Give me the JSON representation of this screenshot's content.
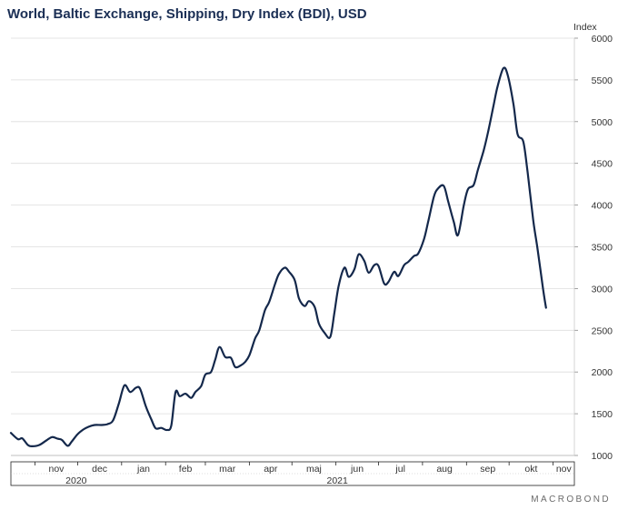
{
  "header": {
    "title": "World, Baltic Exchange, Shipping, Dry Index (BDI), USD"
  },
  "brand": {
    "label": "MACROBOND"
  },
  "chart_data": {
    "type": "line",
    "title": "World, Baltic Exchange, Shipping, Dry Index (BDI), USD",
    "ylabel": "Index",
    "ylim": [
      1000,
      6000
    ],
    "yticks": [
      1000,
      1500,
      2000,
      2500,
      3000,
      3500,
      4000,
      4500,
      5000,
      5500,
      6000
    ],
    "y_axis_position": "right",
    "grid": true,
    "line_color": "#14284b",
    "xlim": [
      "2020-10-15",
      "2021-11-16"
    ],
    "x_month_labels": [
      {
        "label": "nov",
        "date": "2020-11-01"
      },
      {
        "label": "dec",
        "date": "2020-12-01"
      },
      {
        "label": "jan",
        "date": "2021-01-01"
      },
      {
        "label": "feb",
        "date": "2021-02-01"
      },
      {
        "label": "mar",
        "date": "2021-03-01"
      },
      {
        "label": "apr",
        "date": "2021-04-01"
      },
      {
        "label": "maj",
        "date": "2021-05-01"
      },
      {
        "label": "jun",
        "date": "2021-06-01"
      },
      {
        "label": "jul",
        "date": "2021-07-01"
      },
      {
        "label": "aug",
        "date": "2021-08-01"
      },
      {
        "label": "sep",
        "date": "2021-09-01"
      },
      {
        "label": "okt",
        "date": "2021-10-01"
      },
      {
        "label": "nov",
        "date": "2021-11-01"
      }
    ],
    "x_year_labels": [
      {
        "label": "2020",
        "date": "2020-11-30"
      },
      {
        "label": "2021",
        "date": "2021-06-02"
      }
    ],
    "series": [
      {
        "points": [
          [
            "2020-10-15",
            1270
          ],
          [
            "2020-10-20",
            1195
          ],
          [
            "2020-10-23",
            1205
          ],
          [
            "2020-10-27",
            1125
          ],
          [
            "2020-10-30",
            1110
          ],
          [
            "2020-11-04",
            1125
          ],
          [
            "2020-11-09",
            1180
          ],
          [
            "2020-11-13",
            1220
          ],
          [
            "2020-11-17",
            1200
          ],
          [
            "2020-11-20",
            1185
          ],
          [
            "2020-11-24",
            1115
          ],
          [
            "2020-11-27",
            1170
          ],
          [
            "2020-12-01",
            1255
          ],
          [
            "2020-12-05",
            1310
          ],
          [
            "2020-12-09",
            1345
          ],
          [
            "2020-12-13",
            1365
          ],
          [
            "2020-12-18",
            1365
          ],
          [
            "2020-12-22",
            1375
          ],
          [
            "2020-12-26",
            1420
          ],
          [
            "2020-12-30",
            1620
          ],
          [
            "2021-01-03",
            1840
          ],
          [
            "2021-01-07",
            1760
          ],
          [
            "2021-01-11",
            1810
          ],
          [
            "2021-01-14",
            1800
          ],
          [
            "2021-01-18",
            1590
          ],
          [
            "2021-01-22",
            1430
          ],
          [
            "2021-01-25",
            1325
          ],
          [
            "2021-01-29",
            1330
          ],
          [
            "2021-02-02",
            1305
          ],
          [
            "2021-02-05",
            1360
          ],
          [
            "2021-02-08",
            1760
          ],
          [
            "2021-02-11",
            1710
          ],
          [
            "2021-02-15",
            1740
          ],
          [
            "2021-02-19",
            1690
          ],
          [
            "2021-02-22",
            1760
          ],
          [
            "2021-02-26",
            1830
          ],
          [
            "2021-03-01",
            1970
          ],
          [
            "2021-03-05",
            2000
          ],
          [
            "2021-03-08",
            2150
          ],
          [
            "2021-03-11",
            2300
          ],
          [
            "2021-03-15",
            2180
          ],
          [
            "2021-03-19",
            2170
          ],
          [
            "2021-03-22",
            2060
          ],
          [
            "2021-03-26",
            2080
          ],
          [
            "2021-03-29",
            2120
          ],
          [
            "2021-04-01",
            2200
          ],
          [
            "2021-04-05",
            2400
          ],
          [
            "2021-04-08",
            2500
          ],
          [
            "2021-04-12",
            2740
          ],
          [
            "2021-04-15",
            2840
          ],
          [
            "2021-04-19",
            3050
          ],
          [
            "2021-04-22",
            3180
          ],
          [
            "2021-04-26",
            3250
          ],
          [
            "2021-04-29",
            3200
          ],
          [
            "2021-05-03",
            3100
          ],
          [
            "2021-05-06",
            2880
          ],
          [
            "2021-05-10",
            2790
          ],
          [
            "2021-05-13",
            2850
          ],
          [
            "2021-05-17",
            2780
          ],
          [
            "2021-05-20",
            2580
          ],
          [
            "2021-05-24",
            2470
          ],
          [
            "2021-05-28",
            2420
          ],
          [
            "2021-05-31",
            2720
          ],
          [
            "2021-06-03",
            3040
          ],
          [
            "2021-06-07",
            3250
          ],
          [
            "2021-06-10",
            3140
          ],
          [
            "2021-06-14",
            3230
          ],
          [
            "2021-06-17",
            3410
          ],
          [
            "2021-06-21",
            3330
          ],
          [
            "2021-06-24",
            3190
          ],
          [
            "2021-06-28",
            3280
          ],
          [
            "2021-07-01",
            3270
          ],
          [
            "2021-07-05",
            3060
          ],
          [
            "2021-07-08",
            3080
          ],
          [
            "2021-07-12",
            3200
          ],
          [
            "2021-07-15",
            3150
          ],
          [
            "2021-07-19",
            3280
          ],
          [
            "2021-07-22",
            3320
          ],
          [
            "2021-07-26",
            3390
          ],
          [
            "2021-07-29",
            3420
          ],
          [
            "2021-08-02",
            3590
          ],
          [
            "2021-08-05",
            3800
          ],
          [
            "2021-08-09",
            4100
          ],
          [
            "2021-08-12",
            4200
          ],
          [
            "2021-08-16",
            4230
          ],
          [
            "2021-08-19",
            4050
          ],
          [
            "2021-08-23",
            3800
          ],
          [
            "2021-08-26",
            3640
          ],
          [
            "2021-08-30",
            3990
          ],
          [
            "2021-09-02",
            4190
          ],
          [
            "2021-09-06",
            4240
          ],
          [
            "2021-09-09",
            4420
          ],
          [
            "2021-09-13",
            4650
          ],
          [
            "2021-09-16",
            4860
          ],
          [
            "2021-09-20",
            5190
          ],
          [
            "2021-09-23",
            5430
          ],
          [
            "2021-09-27",
            5640
          ],
          [
            "2021-09-30",
            5560
          ],
          [
            "2021-10-04",
            5220
          ],
          [
            "2021-10-07",
            4850
          ],
          [
            "2021-10-11",
            4760
          ],
          [
            "2021-10-14",
            4400
          ],
          [
            "2021-10-18",
            3820
          ],
          [
            "2021-10-21",
            3480
          ],
          [
            "2021-10-25",
            2990
          ],
          [
            "2021-10-27",
            2770
          ]
        ]
      }
    ]
  }
}
